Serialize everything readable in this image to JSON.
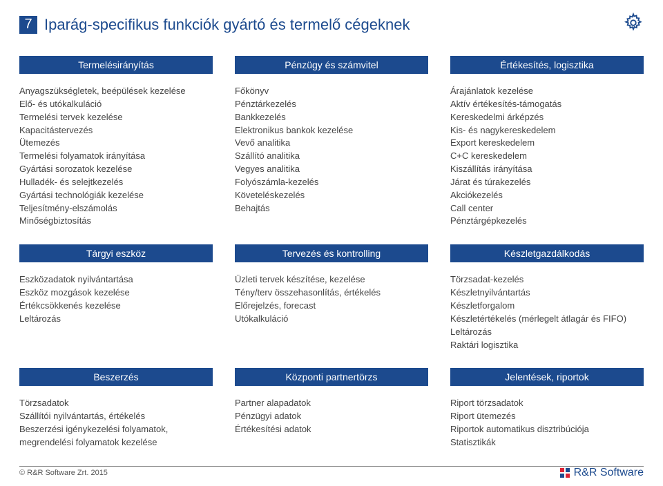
{
  "page_number": "7",
  "title": "Iparág-specifikus funkciók gyártó és termelő cégeknek",
  "gear_icon_color": "#1c4a8e",
  "header_bg": "#1c4a8e",
  "header_fg": "#ffffff",
  "body_font_size": 13,
  "title_font_size": 22,
  "sections": {
    "r1c1": {
      "header": "Termelésirányítás",
      "items": [
        "Anyagszükségletek, beépülések kezelése",
        "Elő- és utókalkuláció",
        "Termelési tervek kezelése",
        "Kapacitástervezés",
        "Ütemezés",
        "Termelési folyamatok irányítása",
        "Gyártási sorozatok kezelése",
        "Hulladék- és selejtkezelés",
        "Gyártási technológiák kezelése",
        "Teljesítmény-elszámolás",
        "Minőségbiztosítás"
      ]
    },
    "r1c2": {
      "header": "Pénzügy és számvitel",
      "items": [
        "Főkönyv",
        "Pénztárkezelés",
        "Bankkezelés",
        "Elektronikus bankok kezelése",
        "Vevő analitika",
        "Szállító analitika",
        "Vegyes analitika",
        "Folyószámla-kezelés",
        "Követeléskezelés",
        "Behajtás"
      ]
    },
    "r1c3": {
      "header": "Értékesítés, logisztika",
      "items": [
        "Árajánlatok kezelése",
        "Aktív értékesítés-támogatás",
        "Kereskedelmi árképzés",
        "Kis- és nagykereskedelem",
        "Export kereskedelem",
        "C+C kereskedelem",
        "Kiszállítás irányítása",
        "Járat és túrakezelés",
        "Akciókezelés",
        "Call center",
        "Pénztárgépkezelés"
      ]
    },
    "r2c1": {
      "header": "Tárgyi eszköz",
      "items": [
        "Eszközadatok nyilvántartása",
        "Eszköz mozgások kezelése",
        "Értékcsökkenés kezelése",
        "Leltározás"
      ]
    },
    "r2c2": {
      "header": "Tervezés és kontrolling",
      "items": [
        "Üzleti tervek készítése, kezelése",
        "Tény/terv összehasonlítás, értékelés",
        "Előrejelzés, forecast",
        "Utókalkuláció"
      ]
    },
    "r2c3": {
      "header": "Készletgazdálkodás",
      "items": [
        "Törzsadat-kezelés",
        "Készletnyilvántartás",
        "Készletforgalom",
        "Készletértékelés (mérlegelt átlagár és FIFO)",
        "Leltározás",
        "Raktári logisztika"
      ]
    },
    "r3c1": {
      "header": "Beszerzés",
      "items": [
        "Törzsadatok",
        "Szállítói nyilvántartás, értékelés",
        "Beszerzési igénykezelési folyamatok,",
        "megrendelési folyamatok kezelése"
      ]
    },
    "r3c2": {
      "header": "Központi partnertörzs",
      "items": [
        "Partner alapadatok",
        "Pénzügyi adatok",
        "Értékesítési adatok"
      ]
    },
    "r3c3": {
      "header": "Jelentések, riportok",
      "items": [
        "Riport törzsadatok",
        "Riport ütemezés",
        "Riportok automatikus disztribúciója",
        "Statisztikák"
      ]
    }
  },
  "footer": {
    "copyright": "© R&R Software Zrt. 2015",
    "brand": "R&R Software"
  }
}
